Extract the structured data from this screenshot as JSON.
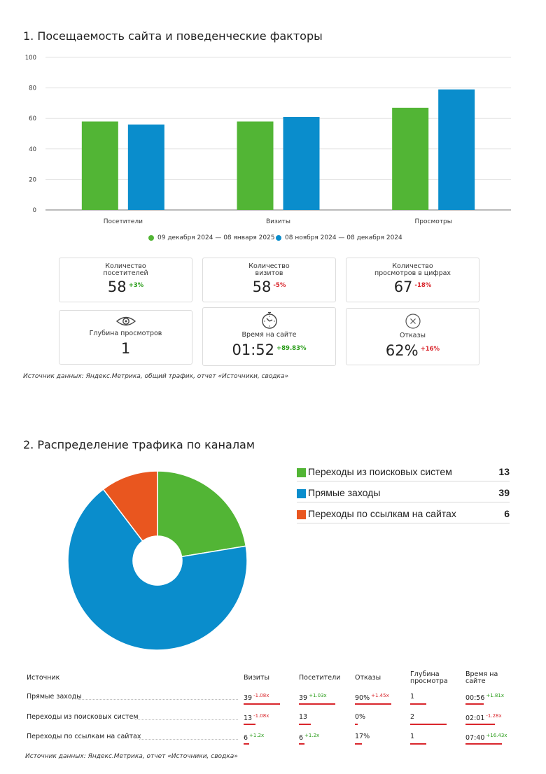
{
  "section1": {
    "title": "1. Посещаемость сайта и поведенческие факторы",
    "chart_data": {
      "type": "bar",
      "categories": [
        "Посетители",
        "Визиты",
        "Просмотры"
      ],
      "series": [
        {
          "name": "09 декабря 2024 — 08 января 2025",
          "values": [
            58,
            58,
            67
          ],
          "color": "#52b535"
        },
        {
          "name": "08 ноября 2024 — 08 декабря 2024",
          "values": [
            56,
            61,
            79
          ],
          "color": "#0a8dcc"
        }
      ],
      "ylim": [
        0,
        100
      ],
      "yticks": [
        "0",
        "20",
        "40",
        "60",
        "80",
        "100"
      ],
      "grid": true,
      "legend": "bottom-center"
    },
    "cards": [
      {
        "label": "Количество посетителей",
        "value": "58",
        "change": "+3%",
        "trend": "pos"
      },
      {
        "label": "Количество визитов",
        "value": "58",
        "change": "-5%",
        "trend": "neg"
      },
      {
        "label": "Количество просмотров в цифрах",
        "value": "67",
        "change": "-18%",
        "trend": "neg"
      },
      {
        "label": "Глубина просмотров",
        "value": "1",
        "change": "",
        "trend": "",
        "icon": "eye-icon"
      },
      {
        "label": "Время на сайте",
        "value": "01:52",
        "change": "+89.83%",
        "trend": "pos",
        "icon": "clock-icon"
      },
      {
        "label": "Отказы",
        "value": "62%",
        "change": "+16%",
        "trend": "pos",
        "icon": "close-circle-icon"
      }
    ],
    "source": "Источник данных: Яндекс.Метрика, общий трафик, отчет «Источники, сводка»"
  },
  "section2": {
    "title": "2. Распределение трафика по каналам",
    "chart_data": {
      "type": "pie",
      "labels": [
        "Переходы из поисковых систем",
        "Прямые заходы",
        "Переходы по ссылкам на сайтах"
      ],
      "values": [
        13,
        39,
        6
      ],
      "colors": [
        "#52b535",
        "#0a8dcc",
        "#e9561f"
      ],
      "donut": true
    },
    "table": {
      "headers": [
        "Источник",
        "Визиты",
        "Посетители",
        "Отказы",
        "Глубина просмотра",
        "Время на сайте"
      ],
      "rows": [
        {
          "source": "Прямые заходы",
          "visits": "39",
          "visits_chg": "-1.08x",
          "visits_trend": "neg",
          "visitors": "39",
          "visitors_chg": "+1.03x",
          "visitors_trend": "pos",
          "bounce": "90%",
          "bounce_chg": "+1.45x",
          "bounce_trend": "neg",
          "depth": "1",
          "time": "00:56",
          "time_chg": "+1.81x",
          "time_trend": "pos",
          "bars": [
            1.0,
            1.0,
            1.0,
            0.45,
            0.5
          ]
        },
        {
          "source": "Переходы из поисковых систем",
          "visits": "13",
          "visits_chg": "-1.08x",
          "visits_trend": "neg",
          "visitors": "13",
          "visitors_chg": "",
          "visitors_trend": "",
          "bounce": "0%",
          "bounce_chg": "",
          "bounce_trend": "",
          "depth": "2",
          "time": "02:01",
          "time_chg": "-1.28x",
          "time_trend": "neg",
          "bars": [
            0.33,
            0.33,
            0.0,
            1.0,
            0.8
          ]
        },
        {
          "source": "Переходы по ссылкам на сайтах",
          "visits": "6",
          "visits_chg": "+1.2x",
          "visits_trend": "pos",
          "visitors": "6",
          "visitors_chg": "+1.2x",
          "visitors_trend": "pos",
          "bounce": "17%",
          "bounce_chg": "",
          "bounce_trend": "",
          "depth": "1",
          "time": "07:40",
          "time_chg": "+16.43x",
          "time_trend": "pos",
          "bars": [
            0.15,
            0.15,
            0.2,
            0.45,
            1.0
          ]
        }
      ]
    },
    "source": "Источник данных: Яндекс.Метрика, отчет «Источники, сводка»"
  }
}
